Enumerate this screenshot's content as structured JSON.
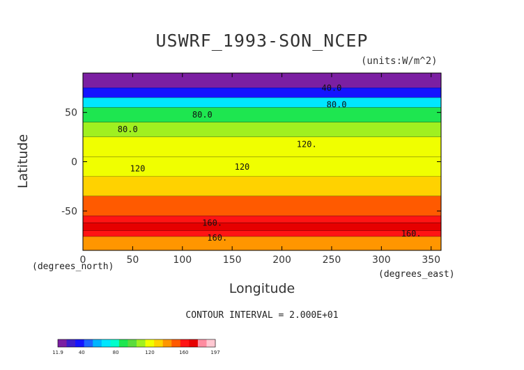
{
  "chart_data": {
    "type": "heatmap",
    "subtype": "filled-contour-map",
    "title": "USWRF_1993-SON_NCEP",
    "units_label": "(units:W/m^2)",
    "xlabel": "Longitude",
    "ylabel": "Latitude",
    "x_unit_label": "(degrees_east)",
    "y_unit_label": "(degrees_north)",
    "xlim": [
      0,
      360
    ],
    "ylim": [
      -90,
      90
    ],
    "x_ticks": [
      0,
      50,
      100,
      150,
      200,
      250,
      300,
      350
    ],
    "y_ticks": [
      50,
      0,
      -50
    ],
    "contour_interval_text": "CONTOUR INTERVAL = 2.000E+01",
    "colorbar": {
      "tick_labels": [
        "11.9",
        "40",
        "80",
        "120",
        "160",
        "197"
      ],
      "tick_values": [
        11.9,
        40,
        80,
        120,
        160,
        197
      ],
      "colors": [
        "#7b1fa2",
        "#3d1ec9",
        "#1414ff",
        "#1e64ff",
        "#00b4ff",
        "#00e6ff",
        "#00ffcc",
        "#1ee650",
        "#5adc3c",
        "#a0f020",
        "#f0ff00",
        "#ffd200",
        "#ff9600",
        "#ff5a00",
        "#ff1414",
        "#e60000",
        "#ff8ca0",
        "#ffc8d2"
      ]
    },
    "latitude_bands": [
      {
        "lat": [
          75,
          90
        ],
        "value": 20
      },
      {
        "lat": [
          65,
          75
        ],
        "value": 40
      },
      {
        "lat": [
          55,
          65
        ],
        "value": 70
      },
      {
        "lat": [
          40,
          55
        ],
        "value": 90
      },
      {
        "lat": [
          25,
          40
        ],
        "value": 110
      },
      {
        "lat": [
          5,
          25
        ],
        "value": 120
      },
      {
        "lat": [
          -15,
          5
        ],
        "value": 125
      },
      {
        "lat": [
          -35,
          -15
        ],
        "value": 130
      },
      {
        "lat": [
          -55,
          -35
        ],
        "value": 150
      },
      {
        "lat": [
          -62,
          -55
        ],
        "value": 160
      },
      {
        "lat": [
          -70,
          -62
        ],
        "value": 175
      },
      {
        "lat": [
          -76,
          -70
        ],
        "value": 165
      },
      {
        "lat": [
          -90,
          -76
        ],
        "value": 140
      }
    ],
    "contour_labels": [
      {
        "text": "40.0",
        "lon": 250,
        "lat": 72
      },
      {
        "text": "80.0",
        "lon": 255,
        "lat": 55
      },
      {
        "text": "80.0",
        "lon": 120,
        "lat": 45
      },
      {
        "text": "80.0",
        "lon": 45,
        "lat": 30
      },
      {
        "text": "120.",
        "lon": 225,
        "lat": 15
      },
      {
        "text": "120",
        "lon": 55,
        "lat": -10
      },
      {
        "text": "120",
        "lon": 160,
        "lat": -8
      },
      {
        "text": "160.",
        "lon": 130,
        "lat": -65
      },
      {
        "text": "160.",
        "lon": 135,
        "lat": -80
      },
      {
        "text": "160.",
        "lon": 330,
        "lat": -76
      }
    ]
  }
}
